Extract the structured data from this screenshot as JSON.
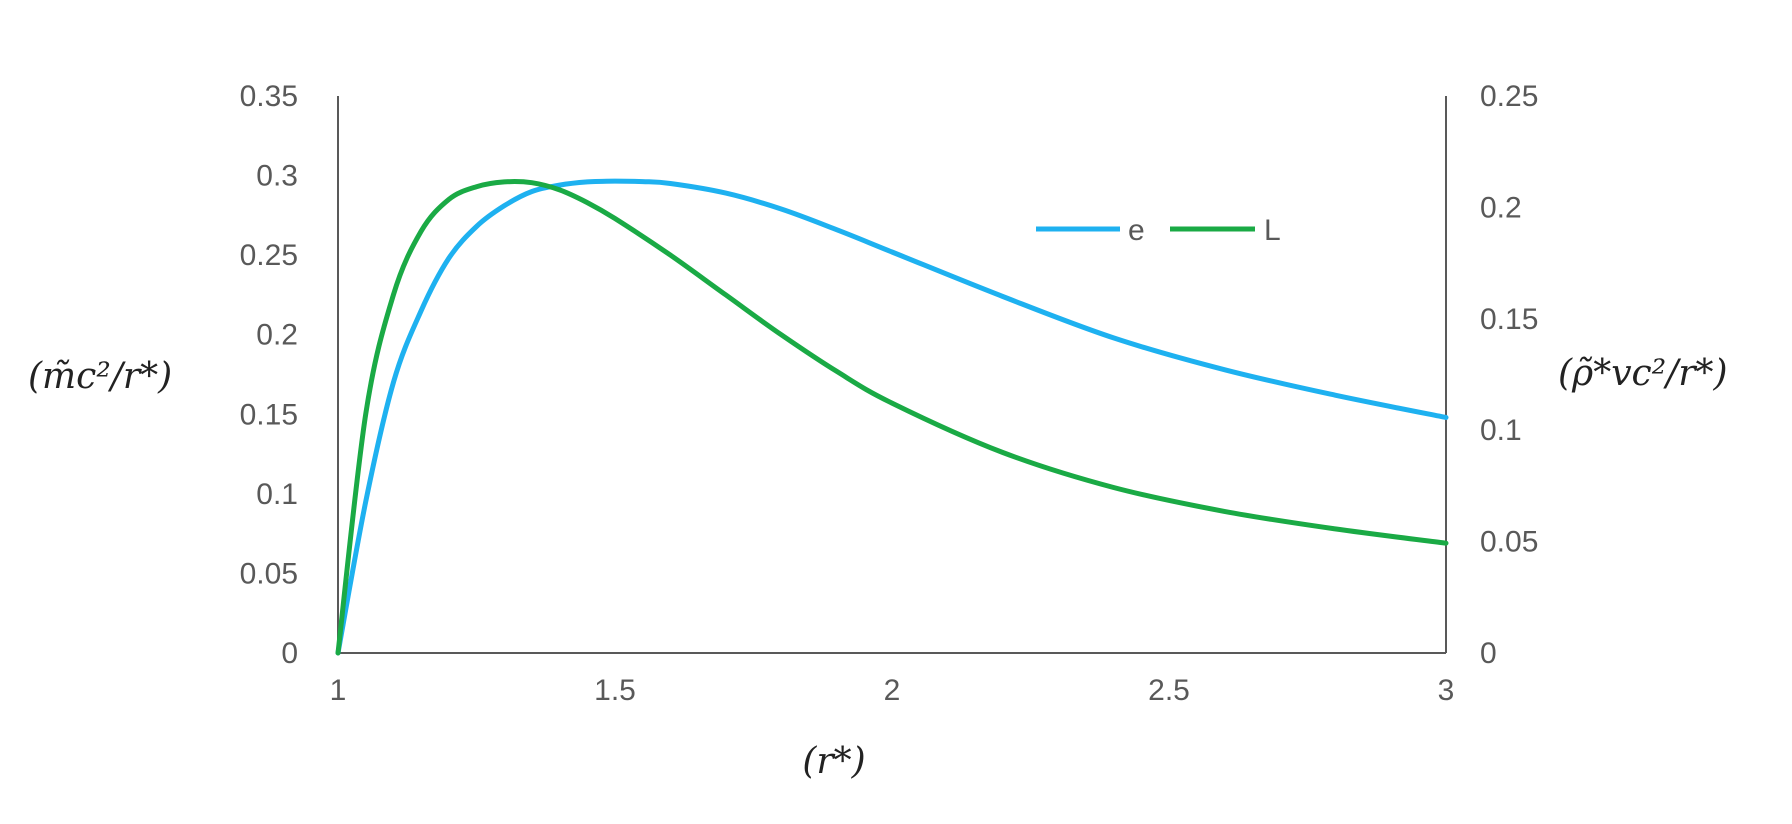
{
  "chart_data": {
    "type": "line",
    "xlabel": "(r*)",
    "ylabel": "(m̃c²/r*)",
    "y2label": "(ρ̃*vc²/r*)",
    "xlim": [
      1,
      3
    ],
    "ylim": [
      0,
      0.35
    ],
    "y2lim": [
      0,
      0.25
    ],
    "x_ticks": [
      "1",
      "1.5",
      "2",
      "2.5",
      "3"
    ],
    "y_ticks": [
      "0",
      "0.05",
      "0.1",
      "0.15",
      "0.2",
      "0.25",
      "0.3",
      "0.35"
    ],
    "y2_ticks": [
      "0",
      "0.05",
      "0.1",
      "0.15",
      "0.2",
      "0.25"
    ],
    "grid": false,
    "legend_position": "top-right",
    "series": [
      {
        "name": "e",
        "color": "#1EB1F0",
        "axis": "left",
        "x": [
          1.0,
          1.05,
          1.1,
          1.15,
          1.2,
          1.25,
          1.3,
          1.35,
          1.4,
          1.45,
          1.5,
          1.55,
          1.6,
          1.7,
          1.8,
          1.9,
          2.0,
          2.2,
          2.4,
          2.6,
          2.8,
          3.0
        ],
        "y": [
          0.0,
          0.095,
          0.17,
          0.215,
          0.248,
          0.268,
          0.281,
          0.29,
          0.294,
          0.296,
          0.2965,
          0.2962,
          0.295,
          0.289,
          0.279,
          0.266,
          0.252,
          0.224,
          0.198,
          0.178,
          0.162,
          0.148
        ]
      },
      {
        "name": "L",
        "color": "#1AAA45",
        "axis": "left",
        "x": [
          1.0,
          1.05,
          1.1,
          1.15,
          1.2,
          1.25,
          1.3,
          1.35,
          1.4,
          1.45,
          1.5,
          1.6,
          1.7,
          1.8,
          1.9,
          2.0,
          2.2,
          2.4,
          2.6,
          2.8,
          3.0
        ],
        "y": [
          0.0,
          0.15,
          0.225,
          0.265,
          0.285,
          0.293,
          0.296,
          0.2955,
          0.291,
          0.283,
          0.273,
          0.25,
          0.225,
          0.2,
          0.177,
          0.157,
          0.126,
          0.104,
          0.089,
          0.078,
          0.069
        ]
      }
    ]
  }
}
